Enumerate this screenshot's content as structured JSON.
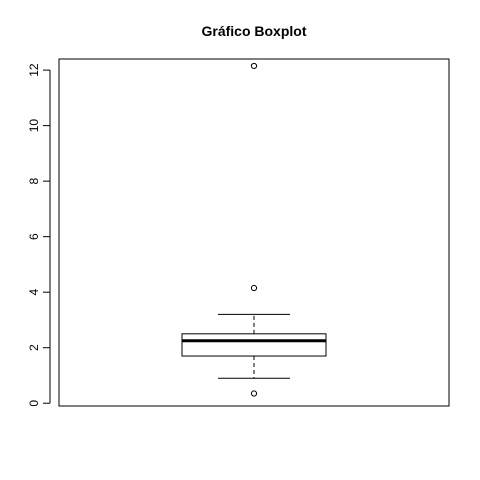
{
  "chart_data": {
    "type": "boxplot",
    "title": "Gráfico Boxplot",
    "xlabel": "",
    "ylabel": "",
    "ylim": [
      -0.1,
      12.4
    ],
    "y_ticks": [
      0,
      2,
      4,
      6,
      8,
      10,
      12
    ],
    "y_tick_labels": [
      "0",
      "2",
      "4",
      "6",
      "8",
      "10",
      "12"
    ],
    "box": {
      "whisker_low": 0.9,
      "q1": 1.7,
      "median": 2.25,
      "q3": 2.5,
      "whisker_high": 3.2
    },
    "outliers": [
      0.35,
      4.15,
      12.15
    ],
    "grid": false,
    "colors": {
      "line": "#000000",
      "background": "#ffffff"
    }
  }
}
